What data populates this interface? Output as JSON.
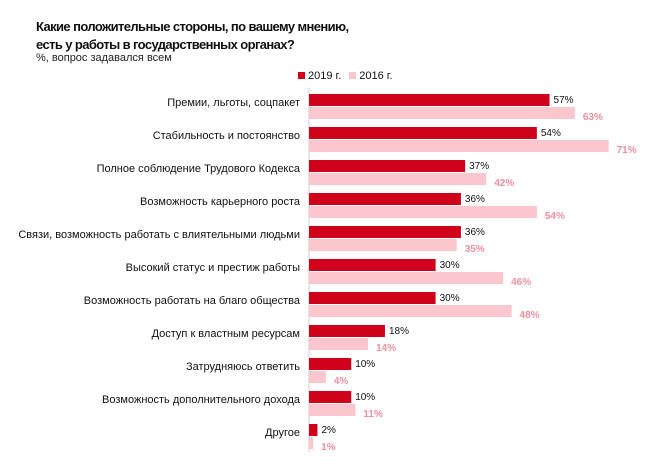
{
  "chart_data": {
    "type": "bar",
    "orientation": "horizontal",
    "title": "Какие положительные стороны, по вашему мнению, есть у работы в государственных органах?",
    "subtitle": "%, вопрос задавался всем",
    "categories": [
      "Премии, льготы, соцпакет",
      "Стабильность и постоянство",
      "Полное соблюдение Трудового Кодекса",
      "Возможность карьерного роста",
      "Связи, возможность работать с влиятельными людьми",
      "Высокий статус и престиж работы",
      "Возможность работать на благо общества",
      "Доступ к властным ресурсам",
      "Затрудняюсь ответить",
      "Возможность дополнительного дохода",
      "Другое"
    ],
    "series": [
      {
        "name": "2019 г.",
        "color": "#d0021b",
        "values": [
          57,
          54,
          37,
          36,
          36,
          30,
          30,
          18,
          10,
          10,
          2
        ]
      },
      {
        "name": "2016 г.",
        "color": "#fbc6cd",
        "values": [
          63,
          71,
          42,
          54,
          35,
          46,
          48,
          14,
          4,
          11,
          1
        ]
      }
    ],
    "value_suffix": "%",
    "grid": false,
    "legend": "top-right"
  }
}
